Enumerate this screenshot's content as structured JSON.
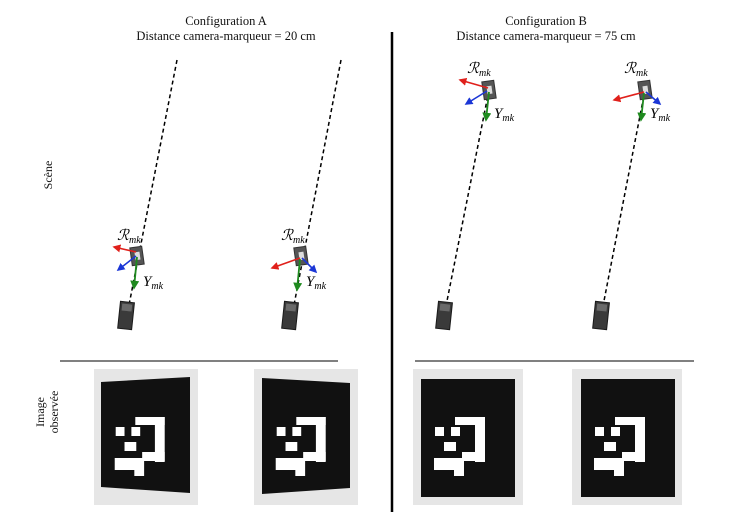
{
  "config_a": {
    "title": "Configuration A",
    "distance": "Distance camera-marqueur = 20 cm"
  },
  "config_b": {
    "title": "Configuration B",
    "distance": "Distance camera-marqueur = 75 cm"
  },
  "row_labels": {
    "scene": "Scène",
    "image_line1": "Image",
    "image_line2": "observée"
  },
  "frame_label": {
    "main": "ℛ",
    "sub": "mk"
  },
  "axis_label": {
    "main": "Y",
    "sub": "mk"
  },
  "colors": {
    "x_axis": "#e0201b",
    "y_axis": "#1f8a1f",
    "z_axis": "#1b36d6",
    "marker_bg": "#111111",
    "image_bg": "#e6e6e6"
  }
}
